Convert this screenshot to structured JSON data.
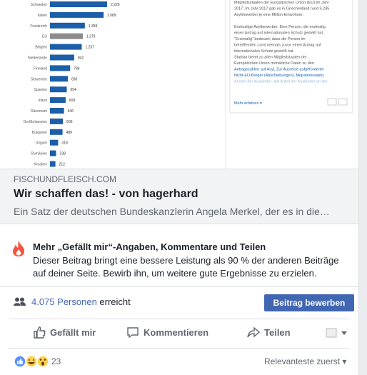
{
  "preview": {
    "chart": {
      "categories": [
        "Schweden",
        "Italien",
        "Frankreich",
        "EU",
        "Belgien",
        "Niederlande",
        "Finnland",
        "Slowenien",
        "Spanien",
        "Irland",
        "Dänemark",
        "Großbritannien",
        "Bulgarien",
        "Ungarn",
        "Rumänien",
        "Kroatien"
      ],
      "values": [
        2226,
        2089,
        1359,
        1279,
        1237,
        942,
        786,
        696,
        654,
        609,
        546,
        506,
        489,
        318,
        238,
        212
      ],
      "value_labels": [
        "2.226",
        "2.089",
        "1.359",
        "1.279",
        "1.237",
        "942",
        "786",
        "696",
        "654",
        "609",
        "546",
        "506",
        "489",
        "318",
        "238",
        "212"
      ],
      "colors": [
        "#1c5ea8",
        "#1c5ea8",
        "#1c5ea8",
        "#8c8c8c",
        "#1c5ea8",
        "#1c5ea8",
        "#1c5ea8",
        "#1c5ea8",
        "#1c5ea8",
        "#1c5ea8",
        "#1c5ea8",
        "#1c5ea8",
        "#1c5ea8",
        "#1c5ea8",
        "#1c5ea8",
        "#1c5ea8"
      ]
    },
    "panel_lines": [
      "Mitgliedsstaaten der Europäischen Union (EU) im Jahr",
      "2017. Im Jahr 2017 gab es in Griechenland rund 5.295",
      "Asylbewerber je eine Million Einwohner.",
      "Erstmalige Asylbewerber: Eine Person, die erstmalig",
      "einen Antrag auf internationalen Schutz gestellt hat.",
      "\"Erstmalig\" bedeutet, dass die Person im",
      "betreffenden Land niemals zuvor einen Antrag auf",
      "internationalen Schutz gestellt hat.",
      "Statista bietet zu allen Mitgliedstaaten der",
      "Europäischen Union monatliche Daten zu den"
    ],
    "panel_links": [
      "Antragszahlen auf Asyl, Zur Ausreise aufgeforderter",
      "Nicht-EU-Bürger (Abschiebungen), Migrationssaldo,",
      "Anzahl der Ausländer und Anteil der Ausländer an der"
    ],
    "more_link": "Mehr erfahren ▾"
  },
  "link": {
    "domain": "FISCHUNDFLEISCH.COM",
    "title": "Wir schaffen das! - von hagerhard",
    "description": "Ein Satz der deutschen Bundeskanzlerin Angela Merkel, der es in die…"
  },
  "insight": {
    "title": "Mehr „Gefällt mir“-Angaben, Kommentare und Teilen",
    "text": "Dieser Beitrag bringt eine bessere Leistung als 90 % der anderen Beiträge auf deiner Seite. Bewirb ihn, um weitere gute Ergebnisse zu erzielen."
  },
  "reach": {
    "count": "4.075 Personen",
    "suffix": "erreicht",
    "button": "Beitrag bewerben"
  },
  "actions": [
    "Gefällt mir",
    "Kommentieren",
    "Teilen"
  ],
  "reactions": {
    "count": 23,
    "sort": "Relevanteste zuerst ▾"
  }
}
